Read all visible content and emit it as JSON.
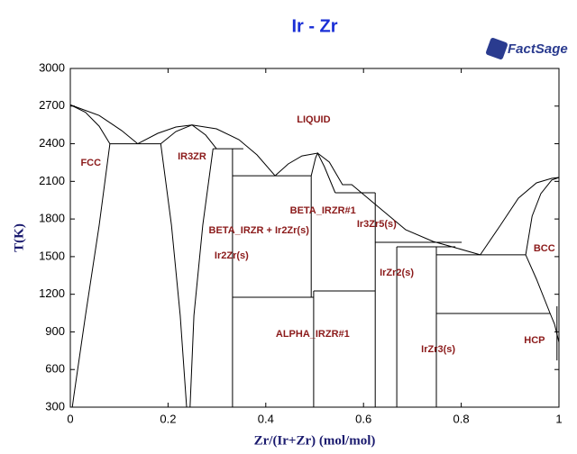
{
  "chart_data": {
    "type": "phase-diagram",
    "title": "Ir - Zr",
    "logo": "FactSage",
    "x_label": "Zr/(Ir+Zr) (mol/mol)",
    "y_label": "T(K)",
    "xlim": [
      0,
      1
    ],
    "ylim": [
      300,
      3000
    ],
    "xticks": [
      0,
      0.2,
      0.4,
      0.6,
      0.8,
      1
    ],
    "yticks": [
      300,
      600,
      900,
      1200,
      1500,
      1800,
      2100,
      2400,
      2700,
      3000
    ],
    "line_color": "#000000",
    "label_color": "#8b1a1a",
    "boundaries": [
      {
        "x": [
          0,
          0.059,
          0.105,
          0.138
        ],
        "y": [
          2710,
          2625,
          2505,
          2400
        ]
      },
      {
        "x": [
          0,
          0.031,
          0.059,
          0.081
        ],
        "y": [
          2710,
          2650,
          2540,
          2400
        ]
      },
      {
        "x": [
          0.081,
          0.185
        ],
        "y": [
          2400,
          2400
        ]
      },
      {
        "x": [
          0.081,
          0.059,
          0.031,
          0.007,
          0.004
        ],
        "y": [
          2400,
          1750,
          1030,
          385,
          300
        ]
      },
      {
        "x": [
          0.138,
          0.179,
          0.216,
          0.249,
          0.299,
          0.345,
          0.382,
          0.419
        ],
        "y": [
          2400,
          2483,
          2533,
          2550,
          2519,
          2433,
          2311,
          2145
        ]
      },
      {
        "x": [
          0.185,
          0.216,
          0.249,
          0.277,
          0.299
        ],
        "y": [
          2400,
          2497,
          2550,
          2469,
          2360
        ]
      },
      {
        "x": [
          0.185,
          0.207,
          0.225,
          0.238
        ],
        "y": [
          2400,
          1750,
          1030,
          300
        ]
      },
      {
        "x": [
          0.292,
          0.271,
          0.253,
          0.245
        ],
        "y": [
          2360,
          1750,
          1030,
          300
        ]
      },
      {
        "x": [
          0.292,
          0.354
        ],
        "y": [
          2360,
          2360
        ]
      },
      {
        "x": [
          0.332,
          0.332
        ],
        "y": [
          2360,
          300
        ]
      },
      {
        "x": [
          0.332,
          0.493
        ],
        "y": [
          2145,
          2145
        ]
      },
      {
        "x": [
          0.332,
          0.498
        ],
        "y": [
          1176,
          1176
        ]
      },
      {
        "x": [
          0.493,
          0.493
        ],
        "y": [
          2145,
          1176
        ]
      },
      {
        "x": [
          0.498,
          0.498
        ],
        "y": [
          1226,
          300
        ]
      },
      {
        "x": [
          0.498,
          0.624
        ],
        "y": [
          1226,
          1226
        ]
      },
      {
        "x": [
          0.624,
          0.624
        ],
        "y": [
          2009,
          300
        ]
      },
      {
        "x": [
          0.542,
          0.624
        ],
        "y": [
          2009,
          2009
        ]
      },
      {
        "x": [
          0.419,
          0.446,
          0.474,
          0.506,
          0.53,
          0.557,
          0.576,
          0.631,
          0.686,
          0.742,
          0.788,
          0.839
        ],
        "y": [
          2145,
          2239,
          2303,
          2325,
          2253,
          2074,
          2074,
          1894,
          1715,
          1621,
          1571,
          1514
        ]
      },
      {
        "x": [
          0.493,
          0.502,
          0.506,
          0.52,
          0.542
        ],
        "y": [
          2145,
          2289,
          2325,
          2217,
          2009
        ]
      },
      {
        "x": [
          0.624,
          0.801
        ],
        "y": [
          1614,
          1614
        ]
      },
      {
        "x": [
          0.668,
          0.788
        ],
        "y": [
          1578,
          1578
        ]
      },
      {
        "x": [
          0.668,
          0.668
        ],
        "y": [
          1578,
          300
        ]
      },
      {
        "x": [
          0.749,
          0.749
        ],
        "y": [
          1578,
          300
        ]
      },
      {
        "x": [
          0.749,
          0.982
        ],
        "y": [
          1047,
          1047
        ]
      },
      {
        "x": [
          0.749,
          0.932
        ],
        "y": [
          1514,
          1514
        ]
      },
      {
        "x": [
          0.839,
          0.88,
          0.917,
          0.954,
          0.985,
          1
        ],
        "y": [
          1514,
          1750,
          1966,
          2088,
          2124,
          2131
        ]
      },
      {
        "x": [
          0.932,
          0.945,
          0.963,
          0.985,
          1
        ],
        "y": [
          1514,
          1822,
          2002,
          2110,
          2131
        ]
      },
      {
        "x": [
          0.932,
          0.954,
          0.982,
          0.991,
          1
        ],
        "y": [
          1514,
          1320,
          1047,
          961,
          817
        ]
      },
      {
        "x": [
          0.996,
          0.996
        ],
        "y": [
          1104,
          673
        ]
      }
    ],
    "annotations": [
      {
        "text": "LIQUID",
        "x": 0.498,
        "y": 2590
      },
      {
        "text": "FCC",
        "x": 0.042,
        "y": 2245
      },
      {
        "text": "IR3ZR",
        "x": 0.249,
        "y": 2295
      },
      {
        "text": "BETA_IRZR + Ir2Zr(s)",
        "x": 0.386,
        "y": 1708
      },
      {
        "text": "Ir2Zr(s)",
        "x": 0.33,
        "y": 1505
      },
      {
        "text": "BETA_IRZR#1",
        "x": 0.517,
        "y": 1865
      },
      {
        "text": "Ir3Zr5(s)",
        "x": 0.627,
        "y": 1758
      },
      {
        "text": "IrZr2(s)",
        "x": 0.668,
        "y": 1370
      },
      {
        "text": "ALPHA_IRZR#1",
        "x": 0.496,
        "y": 880
      },
      {
        "text": "IrZr3(s)",
        "x": 0.753,
        "y": 760
      },
      {
        "text": "BCC",
        "x": 0.97,
        "y": 1564
      },
      {
        "text": "HCP",
        "x": 0.95,
        "y": 831
      }
    ]
  }
}
